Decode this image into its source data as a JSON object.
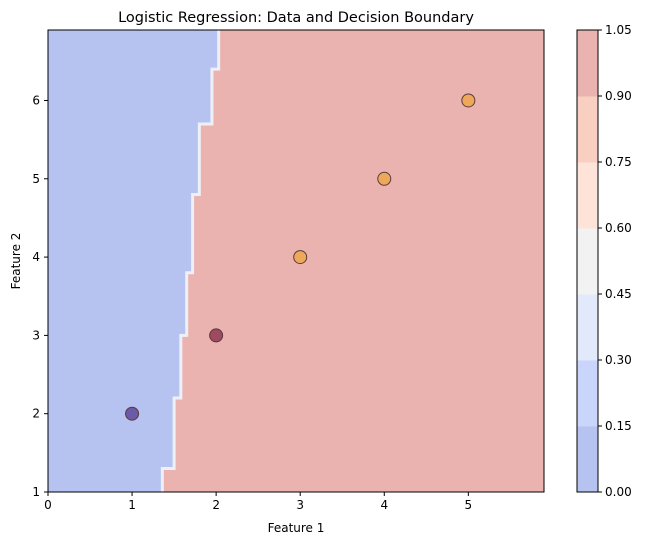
{
  "chart_data": {
    "type": "scatter",
    "title": "Logistic Regression: Data and Decision Boundary",
    "xlabel": "Feature 1",
    "ylabel": "Feature 2",
    "xlim": [
      0,
      5.9
    ],
    "ylim": [
      1,
      6.9
    ],
    "xticks": [
      "0",
      "1",
      "2",
      "3",
      "4",
      "5"
    ],
    "yticks": [
      "1",
      "2",
      "3",
      "4",
      "5",
      "6"
    ],
    "points": [
      {
        "x": 1,
        "y": 2,
        "color": "#6a5aa8"
      },
      {
        "x": 2,
        "y": 3,
        "color": "#9e4a62"
      },
      {
        "x": 3,
        "y": 4,
        "color": "#eda85a"
      },
      {
        "x": 4,
        "y": 5,
        "color": "#eda85a"
      },
      {
        "x": 5,
        "y": 6,
        "color": "#eda85a"
      }
    ],
    "decision_boundary": [
      [
        1.36,
        1.0
      ],
      [
        1.36,
        1.3
      ],
      [
        1.5,
        1.3
      ],
      [
        1.5,
        2.2
      ],
      [
        1.58,
        2.2
      ],
      [
        1.58,
        3.0
      ],
      [
        1.65,
        3.0
      ],
      [
        1.65,
        3.8
      ],
      [
        1.72,
        3.8
      ],
      [
        1.72,
        4.8
      ],
      [
        1.8,
        4.8
      ],
      [
        1.8,
        5.7
      ],
      [
        1.95,
        5.7
      ],
      [
        1.95,
        6.4
      ],
      [
        2.03,
        6.4
      ],
      [
        2.03,
        6.9
      ]
    ],
    "region_colors": {
      "class0": "#b6c2f0",
      "class1": "#eab3b0"
    },
    "colorbar": {
      "ticks": [
        "0.00",
        "0.15",
        "0.30",
        "0.45",
        "0.60",
        "0.75",
        "0.90",
        "1.05"
      ],
      "colors": [
        "#b6c2f0",
        "#c9d5fb",
        "#e1e9fb",
        "#f2f2f2",
        "#fde3d8",
        "#f9cfc1",
        "#eab3b0"
      ]
    }
  }
}
